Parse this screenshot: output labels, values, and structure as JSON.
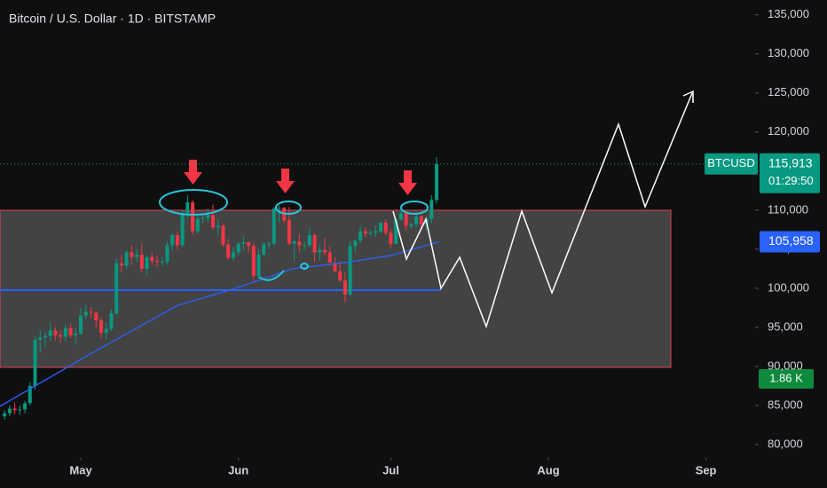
{
  "chart_data": {
    "type": "candlestick",
    "title": "Bitcoin / U.S. Dollar · 1D · BITSTAMP",
    "up_color": "#089981",
    "down_color": "#f23645",
    "grid": false,
    "xlim": [
      -15.9,
      132.5
    ],
    "xticks": [
      {
        "value": 0,
        "label": "May"
      },
      {
        "value": 31,
        "label": "Jun"
      },
      {
        "value": 61,
        "label": "Jul"
      },
      {
        "value": 92,
        "label": "Aug"
      },
      {
        "value": 123,
        "label": "Sep"
      }
    ],
    "ylim": [
      78300,
      136900
    ],
    "yticks": [
      {
        "value": 80000,
        "label": "80,000"
      },
      {
        "value": 85000,
        "label": "85,000"
      },
      {
        "value": 90000,
        "label": "90,000"
      },
      {
        "value": 95000,
        "label": "95,000"
      },
      {
        "value": 100000,
        "label": "100,000"
      },
      {
        "value": 105000,
        "label": "105,000"
      },
      {
        "value": 110000,
        "label": "110,000"
      },
      {
        "value": 115000,
        "label": "115,000"
      },
      {
        "value": 120000,
        "label": "120,000"
      },
      {
        "value": 125000,
        "label": "125,000"
      },
      {
        "value": 130000,
        "label": "130,000"
      },
      {
        "value": 135000,
        "label": "135,000"
      }
    ],
    "x": [
      -15,
      -14,
      -13,
      -12,
      -11,
      -10,
      -9,
      -8,
      -7,
      -6,
      -5,
      -4,
      -3,
      -2,
      -1,
      0,
      1,
      2,
      3,
      4,
      5,
      6,
      7,
      8,
      9,
      10,
      11,
      12,
      13,
      14,
      15,
      16,
      17,
      18,
      19,
      20,
      21,
      22,
      23,
      24,
      25,
      26,
      27,
      28,
      29,
      30,
      31,
      32,
      33,
      34,
      35,
      36,
      37,
      38,
      39,
      40,
      41,
      42,
      43,
      44,
      45,
      46,
      47,
      48,
      49,
      50,
      51,
      52,
      53,
      54,
      55,
      56,
      57,
      58,
      59,
      60,
      61,
      62,
      63,
      64,
      65,
      66,
      67,
      68,
      69,
      70
    ],
    "ohlc": [
      [
        83600,
        84400,
        83200,
        84000
      ],
      [
        84000,
        85000,
        83600,
        84600
      ],
      [
        84600,
        85400,
        83900,
        84400
      ],
      [
        84400,
        85000,
        83800,
        84500
      ],
      [
        84500,
        85600,
        84000,
        85300
      ],
      [
        85300,
        88000,
        85000,
        87500
      ],
      [
        87500,
        93800,
        87000,
        93400
      ],
      [
        93400,
        94600,
        91800,
        93700
      ],
      [
        93700,
        94400,
        92500,
        93900
      ],
      [
        93900,
        95600,
        93200,
        94600
      ],
      [
        94600,
        95000,
        93300,
        94000
      ],
      [
        94000,
        94600,
        93000,
        93800
      ],
      [
        93800,
        95300,
        93200,
        94900
      ],
      [
        94900,
        95500,
        93600,
        94000
      ],
      [
        94000,
        95000,
        92900,
        94200
      ],
      [
        94200,
        97400,
        94000,
        96500
      ],
      [
        96500,
        97900,
        96000,
        97000
      ],
      [
        97000,
        97600,
        96200,
        96900
      ],
      [
        96900,
        97000,
        95000,
        95900
      ],
      [
        95900,
        96300,
        93600,
        94300
      ],
      [
        94300,
        95700,
        93500,
        94800
      ],
      [
        94800,
        97300,
        94500,
        96800
      ],
      [
        96800,
        103800,
        96600,
        103200
      ],
      [
        103200,
        104300,
        102000,
        102900
      ],
      [
        102900,
        104900,
        102500,
        104600
      ],
      [
        104600,
        105500,
        103000,
        104000
      ],
      [
        104000,
        105000,
        103400,
        104300
      ],
      [
        104300,
        105700,
        102000,
        102500
      ],
      [
        102500,
        104300,
        101600,
        104000
      ],
      [
        104000,
        104600,
        103000,
        103500
      ],
      [
        103500,
        104200,
        102700,
        103400
      ],
      [
        103400,
        104000,
        102800,
        103400
      ],
      [
        103400,
        106000,
        103000,
        105500
      ],
      [
        105500,
        107000,
        104800,
        106800
      ],
      [
        106800,
        107200,
        105000,
        105500
      ],
      [
        105500,
        110000,
        105300,
        109600
      ],
      [
        109600,
        111900,
        109000,
        111000
      ],
      [
        111000,
        111300,
        106900,
        107300
      ],
      [
        107300,
        109400,
        107000,
        108900
      ],
      [
        108900,
        109500,
        108400,
        109000
      ],
      [
        109000,
        110200,
        108500,
        109400
      ],
      [
        109400,
        110700,
        107500,
        107800
      ],
      [
        107800,
        108900,
        106800,
        108000
      ],
      [
        108000,
        108200,
        105300,
        105600
      ],
      [
        105600,
        106300,
        103700,
        103900
      ],
      [
        103900,
        105300,
        103500,
        104600
      ],
      [
        104600,
        105900,
        104200,
        105700
      ],
      [
        105700,
        106700,
        104900,
        105900
      ],
      [
        105900,
        106000,
        104600,
        105400
      ],
      [
        105400,
        105800,
        100900,
        101600
      ],
      [
        101600,
        105000,
        101200,
        104300
      ],
      [
        104300,
        105900,
        104100,
        105600
      ],
      [
        105600,
        106000,
        105100,
        105700
      ],
      [
        105700,
        110400,
        105400,
        110200
      ],
      [
        110200,
        110600,
        108400,
        110300
      ],
      [
        110300,
        110400,
        108300,
        108700
      ],
      [
        108700,
        110400,
        105500,
        105700
      ],
      [
        105700,
        106300,
        103500,
        106000
      ],
      [
        106000,
        106900,
        104600,
        105500
      ],
      [
        105500,
        106000,
        104900,
        105500
      ],
      [
        105500,
        107800,
        105200,
        106800
      ],
      [
        106800,
        107000,
        103400,
        104600
      ],
      [
        104600,
        105600,
        103600,
        104900
      ],
      [
        104900,
        106500,
        104200,
        104600
      ],
      [
        104600,
        105300,
        102800,
        103300
      ],
      [
        103300,
        104000,
        102000,
        102200
      ],
      [
        102200,
        103400,
        100800,
        101000
      ],
      [
        101000,
        102000,
        98200,
        99200
      ],
      [
        99200,
        106000,
        99000,
        105400
      ],
      [
        105400,
        106300,
        104600,
        106100
      ],
      [
        106100,
        108100,
        105800,
        107300
      ],
      [
        107300,
        107800,
        106500,
        107000
      ],
      [
        107000,
        107500,
        106800,
        107100
      ],
      [
        107100,
        108000,
        106600,
        107300
      ],
      [
        107300,
        108500,
        107000,
        108400
      ],
      [
        108400,
        108800,
        106800,
        107100
      ],
      [
        107100,
        107600,
        105200,
        105700
      ],
      [
        105700,
        109000,
        105600,
        108800
      ],
      [
        108800,
        110600,
        108600,
        109600
      ],
      [
        109600,
        109800,
        107300,
        108000
      ],
      [
        108000,
        108400,
        107600,
        108200
      ],
      [
        108200,
        109700,
        107800,
        109200
      ],
      [
        109200,
        109300,
        107500,
        108200
      ],
      [
        108200,
        109200,
        107400,
        108900
      ],
      [
        108900,
        111900,
        108300,
        111300
      ],
      [
        111300,
        116800,
        110900,
        115913
      ]
    ],
    "ma": {
      "color": "#2962ff",
      "x": [
        -15.9,
        1.6,
        19,
        29.5,
        41.7,
        52,
        61,
        70.5
      ],
      "values": [
        84900,
        91500,
        97800,
        99800,
        102500,
        103300,
        104200,
        105958
      ]
    },
    "price_tag": {
      "name": "BTCUSD",
      "value": 115913,
      "label": "115,913",
      "countdown": "01:29:50"
    },
    "ma_tag": {
      "value": 105958,
      "label": "105,958"
    },
    "volume_tag": "1.86 K"
  }
}
